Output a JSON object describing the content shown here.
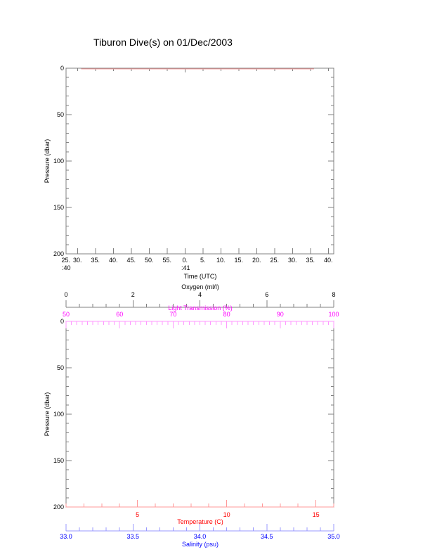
{
  "title": "Tiburon Dive(s) on 01/Dec/2003",
  "colors": {
    "axis": "#808080",
    "text": "#000000",
    "temperature": "#ff0000",
    "temperature_line": "#ff9999",
    "light": "#ff00ff",
    "light_tick": "#ff99ff",
    "salinity": "#0000ff",
    "salinity_tick": "#9999ff"
  },
  "chart_data": [
    {
      "type": "line",
      "ylabel": "Pressure (dbar)",
      "ylim": [
        200,
        0
      ],
      "yticks": [
        "0",
        "50",
        "100",
        "150",
        "200"
      ],
      "xlabel": "Time (UTC)",
      "xticks": [
        "25.",
        "30.",
        "35.",
        "40.",
        "45.",
        "50.",
        "55.",
        "0.",
        "5.",
        "10.",
        "15.",
        "20.",
        "25.",
        "30.",
        "35.",
        "40."
      ],
      "xtick_seconds": [
        25,
        30,
        35,
        40,
        45,
        50,
        55,
        60,
        65,
        70,
        75,
        80,
        85,
        90,
        95,
        100
      ],
      "minute_labels": [
        ":40",
        ":41"
      ],
      "series": [
        {
          "values": [
            [
              31,
              0
            ],
            [
              96,
              0
            ]
          ]
        }
      ]
    },
    {
      "type": "line",
      "ylabel": "Pressure (dbar)",
      "ylim": [
        200,
        0
      ],
      "yticks": [
        "0",
        "50",
        "100",
        "150",
        "200"
      ],
      "axes": {
        "oxygen": {
          "label": "Oxygen (ml/l)",
          "range": [
            0,
            8
          ],
          "ticks": [
            "0",
            "2",
            "4",
            "6",
            "8"
          ]
        },
        "light": {
          "label": "Light Transmission (%)",
          "range": [
            50,
            100
          ],
          "ticks": [
            "50",
            "60",
            "70",
            "80",
            "90",
            "100"
          ]
        },
        "temperature": {
          "label": "Temperature (C)",
          "range": [
            1,
            16
          ],
          "ticks": [
            "5",
            "10",
            "15"
          ]
        },
        "salinity": {
          "label": "Salinity (psu)",
          "range": [
            33.0,
            35.0
          ],
          "ticks": [
            "33.0",
            "33.5",
            "34.0",
            "34.5",
            "35.0"
          ]
        }
      },
      "series": []
    }
  ]
}
